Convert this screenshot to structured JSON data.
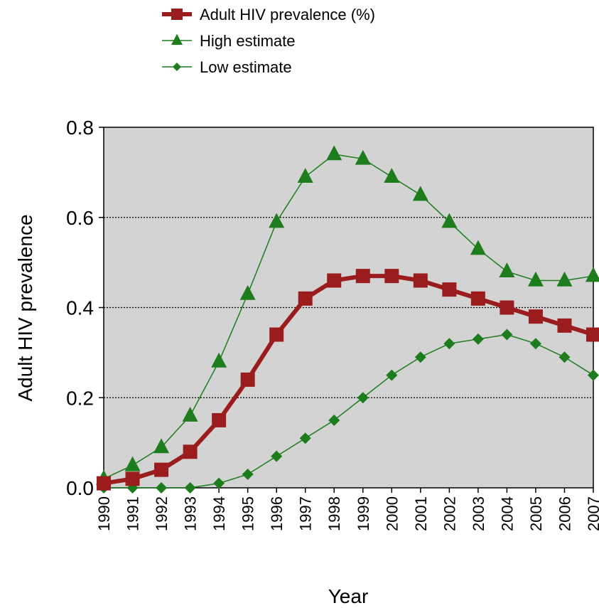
{
  "chart_data": {
    "type": "line",
    "title": "",
    "xlabel": "Year",
    "ylabel": "Adult HIV prevalence",
    "ylim": [
      0,
      0.8
    ],
    "yticks": [
      "0.0",
      "0.2",
      "0.4",
      "0.6",
      "0.8"
    ],
    "grid": "horizontal dotted",
    "legend_position": "top",
    "x": [
      "1990",
      "1991",
      "1992",
      "1993",
      "1994",
      "1995",
      "1996",
      "1997",
      "1998",
      "1999",
      "2000",
      "2001",
      "2002",
      "2003",
      "2004",
      "2005",
      "2006",
      "2007"
    ],
    "series": [
      {
        "name": "Adult HIV prevalence (%)",
        "marker": "square",
        "color": "#9b1c1c",
        "values": [
          0.01,
          0.02,
          0.04,
          0.08,
          0.15,
          0.24,
          0.34,
          0.42,
          0.46,
          0.47,
          0.47,
          0.46,
          0.44,
          0.42,
          0.4,
          0.38,
          0.36,
          0.34
        ]
      },
      {
        "name": "High estimate",
        "marker": "triangle",
        "color": "#1d7d1d",
        "values": [
          0.02,
          0.05,
          0.09,
          0.16,
          0.28,
          0.43,
          0.59,
          0.69,
          0.74,
          0.73,
          0.69,
          0.65,
          0.59,
          0.53,
          0.48,
          0.46,
          0.46,
          0.47
        ]
      },
      {
        "name": "Low estimate",
        "marker": "diamond",
        "color": "#1d7d1d",
        "values": [
          0.0,
          0.0,
          0.0,
          0.0,
          0.01,
          0.03,
          0.07,
          0.11,
          0.15,
          0.2,
          0.25,
          0.29,
          0.32,
          0.33,
          0.34,
          0.32,
          0.29,
          0.25
        ]
      }
    ],
    "plot_background": "#d3d3d3"
  }
}
